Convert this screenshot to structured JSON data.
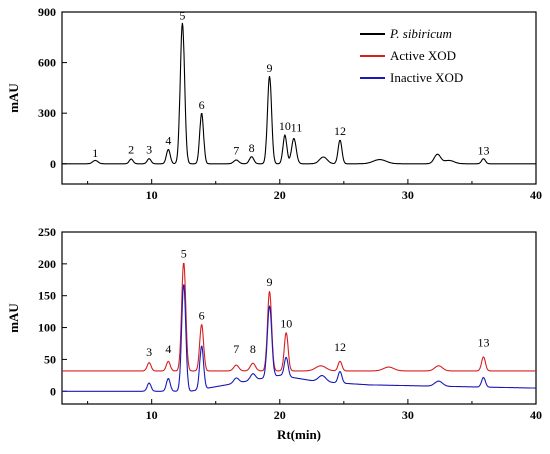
{
  "chart_data": [
    {
      "type": "line",
      "panel": "top",
      "xlabel": "",
      "ylabel": "mAU",
      "xlim": [
        3,
        40
      ],
      "ylim": [
        -120,
        900
      ],
      "x_ticks": [
        10,
        20,
        30,
        40
      ],
      "y_ticks": [
        0,
        300,
        600,
        900
      ],
      "legend": {
        "placement": "top-right",
        "entries": [
          {
            "label": "P. sibiricum",
            "color": "#000000",
            "italic": true
          },
          {
            "label": "Active XOD",
            "color": "#d62020",
            "italic": false
          },
          {
            "label": "Inactive XOD",
            "color": "#1a1ab8",
            "italic": false
          }
        ]
      },
      "series": [
        {
          "name": "P. sibiricum",
          "color": "#000000",
          "baseline": 0,
          "drift": [
            [
              3,
              0
            ],
            [
              40,
              0
            ]
          ],
          "peaks": [
            {
              "label": "1",
              "x": 5.6,
              "height": 20,
              "width": 0.2
            },
            {
              "label": "2",
              "x": 8.4,
              "height": 28,
              "width": 0.15
            },
            {
              "label": "3",
              "x": 9.8,
              "height": 30,
              "width": 0.15
            },
            {
              "label": "4",
              "x": 11.3,
              "height": 85,
              "width": 0.15
            },
            {
              "label": "5",
              "x": 12.4,
              "height": 835,
              "width": 0.17
            },
            {
              "label": "6",
              "x": 13.9,
              "height": 300,
              "width": 0.15
            },
            {
              "label": "7",
              "x": 16.6,
              "height": 22,
              "width": 0.2
            },
            {
              "label": "8",
              "x": 17.8,
              "height": 42,
              "width": 0.17
            },
            {
              "label": "9",
              "x": 19.2,
              "height": 520,
              "width": 0.16
            },
            {
              "label": "10",
              "x": 20.4,
              "height": 170,
              "width": 0.15
            },
            {
              "label": "11",
              "x": 21.1,
              "height": 150,
              "width": 0.18
            },
            {
              "label": "12",
              "x": 24.7,
              "height": 140,
              "width": 0.15
            },
            {
              "label": "13",
              "x": 35.9,
              "height": 30,
              "width": 0.15
            }
          ],
          "minor_peaks": [
            [
              23.4,
              40,
              0.3
            ],
            [
              27.8,
              25,
              0.5
            ],
            [
              32.3,
              55,
              0.25
            ],
            [
              33.2,
              20,
              0.4
            ]
          ]
        }
      ],
      "peak_labels": [
        {
          "text": "1",
          "x": 5.6,
          "y": 40
        },
        {
          "text": "2",
          "x": 8.4,
          "y": 60
        },
        {
          "text": "3",
          "x": 9.8,
          "y": 60
        },
        {
          "text": "4",
          "x": 11.3,
          "y": 115
        },
        {
          "text": "5",
          "x": 12.4,
          "y": 855
        },
        {
          "text": "6",
          "x": 13.9,
          "y": 325
        },
        {
          "text": "7",
          "x": 16.6,
          "y": 55
        },
        {
          "text": "8",
          "x": 17.8,
          "y": 70
        },
        {
          "text": "9",
          "x": 19.2,
          "y": 545
        },
        {
          "text": "10",
          "x": 20.4,
          "y": 200
        },
        {
          "text": "11",
          "x": 21.3,
          "y": 190
        },
        {
          "text": "12",
          "x": 24.7,
          "y": 170
        },
        {
          "text": "13",
          "x": 35.9,
          "y": 55
        }
      ]
    },
    {
      "type": "line",
      "panel": "bottom",
      "xlabel": "Rt(min)",
      "ylabel": "mAU",
      "xlim": [
        3,
        40
      ],
      "ylim": [
        -20,
        250
      ],
      "x_ticks": [
        10,
        20,
        30,
        40
      ],
      "y_ticks": [
        0,
        50,
        100,
        150,
        200,
        250
      ],
      "series": [
        {
          "name": "Active XOD",
          "color": "#d62020",
          "baseline": 32,
          "drift": [
            [
              3,
              32
            ],
            [
              40,
              32
            ]
          ],
          "peaks": [
            {
              "label": "3",
              "x": 9.8,
              "height": 13,
              "width": 0.15
            },
            {
              "label": "4",
              "x": 11.3,
              "height": 15,
              "width": 0.15
            },
            {
              "label": "5",
              "x": 12.5,
              "height": 170,
              "width": 0.16
            },
            {
              "label": "6",
              "x": 13.9,
              "height": 73,
              "width": 0.15
            },
            {
              "label": "7",
              "x": 16.6,
              "height": 9,
              "width": 0.2
            },
            {
              "label": "8",
              "x": 17.9,
              "height": 12,
              "width": 0.2
            },
            {
              "label": "9",
              "x": 19.2,
              "height": 125,
              "width": 0.16
            },
            {
              "label": "10",
              "x": 20.5,
              "height": 60,
              "width": 0.15
            },
            {
              "label": "12",
              "x": 24.7,
              "height": 15,
              "width": 0.15
            },
            {
              "label": "13",
              "x": 35.9,
              "height": 22,
              "width": 0.15
            }
          ],
          "minor_peaks": [
            [
              23.2,
              8,
              0.4
            ],
            [
              28.5,
              6,
              0.4
            ],
            [
              32.4,
              8,
              0.3
            ]
          ]
        },
        {
          "name": "Inactive XOD",
          "color": "#1a1ab8",
          "baseline": 0,
          "drift": [
            [
              3,
              0
            ],
            [
              13,
              0
            ],
            [
              20,
              25
            ],
            [
              23,
              15
            ],
            [
              27,
              10
            ],
            [
              40,
              5
            ]
          ],
          "peaks": [
            {
              "label": "3",
              "x": 9.8,
              "height": 13,
              "width": 0.15
            },
            {
              "label": "4",
              "x": 11.3,
              "height": 20,
              "width": 0.15
            },
            {
              "label": "5",
              "x": 12.5,
              "height": 168,
              "width": 0.16
            },
            {
              "label": "6",
              "x": 13.9,
              "height": 68,
              "width": 0.15
            },
            {
              "label": "7",
              "x": 16.6,
              "height": 8,
              "width": 0.2
            },
            {
              "label": "8",
              "x": 17.9,
              "height": 10,
              "width": 0.2
            },
            {
              "label": "9",
              "x": 19.2,
              "height": 112,
              "width": 0.17
            },
            {
              "label": "10",
              "x": 20.5,
              "height": 30,
              "width": 0.15
            },
            {
              "label": "12",
              "x": 24.7,
              "height": 18,
              "width": 0.15
            },
            {
              "label": "13",
              "x": 35.9,
              "height": 15,
              "width": 0.15
            }
          ],
          "minor_peaks": [
            [
              23.3,
              10,
              0.3
            ],
            [
              32.4,
              8,
              0.3
            ]
          ]
        }
      ],
      "peak_labels": [
        {
          "text": "3",
          "x": 9.8,
          "y": 55
        },
        {
          "text": "4",
          "x": 11.3,
          "y": 60
        },
        {
          "text": "5",
          "x": 12.5,
          "y": 210
        },
        {
          "text": "6",
          "x": 13.9,
          "y": 113
        },
        {
          "text": "7",
          "x": 16.6,
          "y": 60
        },
        {
          "text": "8",
          "x": 17.9,
          "y": 60
        },
        {
          "text": "9",
          "x": 19.2,
          "y": 165
        },
        {
          "text": "10",
          "x": 20.5,
          "y": 100
        },
        {
          "text": "12",
          "x": 24.7,
          "y": 63
        },
        {
          "text": "13",
          "x": 35.9,
          "y": 70
        }
      ]
    }
  ]
}
